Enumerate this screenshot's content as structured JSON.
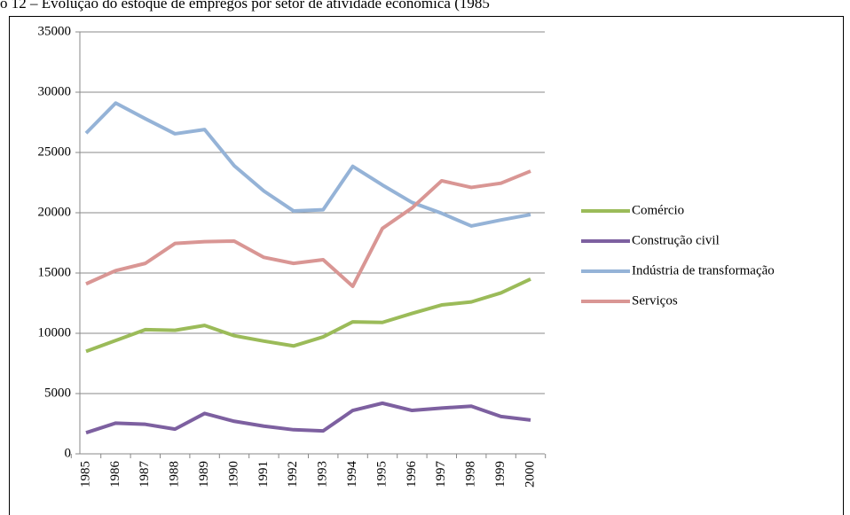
{
  "chart_data": {
    "type": "line",
    "title": "o 12 – Evolução do estoque de empregos por setor de atividade econômica (1985",
    "categories": [
      "1985",
      "1986",
      "1987",
      "1988",
      "1989",
      "1990",
      "1991",
      "1992",
      "1993",
      "1994",
      "1995",
      "1996",
      "1997",
      "1998",
      "1999",
      "2000"
    ],
    "series": [
      {
        "name": "Comércio",
        "color": "#9bbb59",
        "values": [
          8500,
          9400,
          10300,
          10250,
          10650,
          9800,
          9350,
          8950,
          9700,
          10950,
          10900,
          11650,
          12350,
          12600,
          13350,
          14500
        ]
      },
      {
        "name": "Construção civil",
        "color": "#7d60a0",
        "values": [
          1750,
          2550,
          2450,
          2050,
          3350,
          2700,
          2300,
          2000,
          1900,
          3600,
          4200,
          3600,
          3800,
          3950,
          3100,
          2800
        ]
      },
      {
        "name": "Indústria de transformação",
        "color": "#95b3d7",
        "values": [
          26600,
          29100,
          27800,
          26550,
          26900,
          23900,
          21800,
          20150,
          20250,
          23850,
          22300,
          20850,
          19950,
          18900,
          19400,
          19850
        ]
      },
      {
        "name": "Serviços",
        "color": "#d99694",
        "values": [
          14100,
          15200,
          15800,
          17450,
          17600,
          17650,
          16300,
          15800,
          16100,
          13900,
          18700,
          20400,
          22650,
          22100,
          22450,
          23450
        ]
      }
    ],
    "ylim": [
      0,
      35000
    ],
    "yticks": [
      0,
      5000,
      10000,
      15000,
      20000,
      25000,
      30000,
      35000
    ],
    "grid": true,
    "legend": "right"
  }
}
